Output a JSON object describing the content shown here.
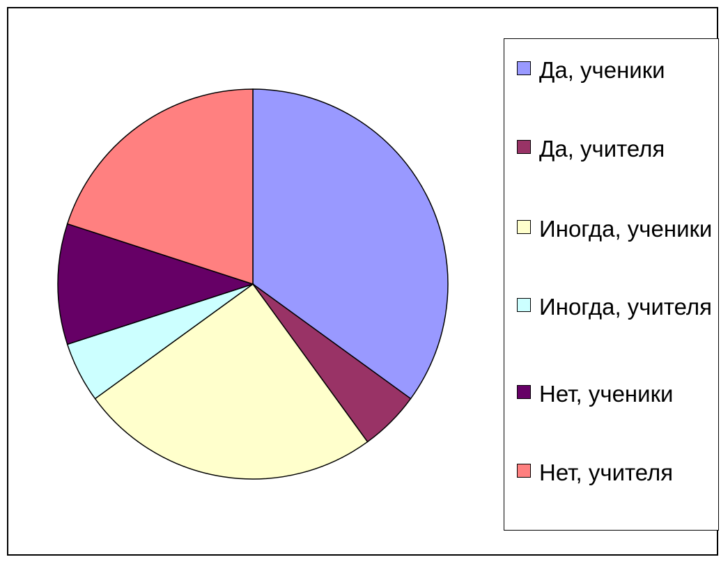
{
  "chart_data": {
    "type": "pie",
    "categories": [
      "Да, ученики",
      "Да, учителя",
      "Иногда, ученики",
      "Иногда, учителя",
      "Нет, ученики",
      "Нет, учителя"
    ],
    "values": [
      35,
      5,
      25,
      5,
      10,
      20
    ],
    "colors": [
      "#9999ff",
      "#993366",
      "#ffffcc",
      "#ccffff",
      "#660066",
      "#ff8080"
    ],
    "legend": "right"
  }
}
